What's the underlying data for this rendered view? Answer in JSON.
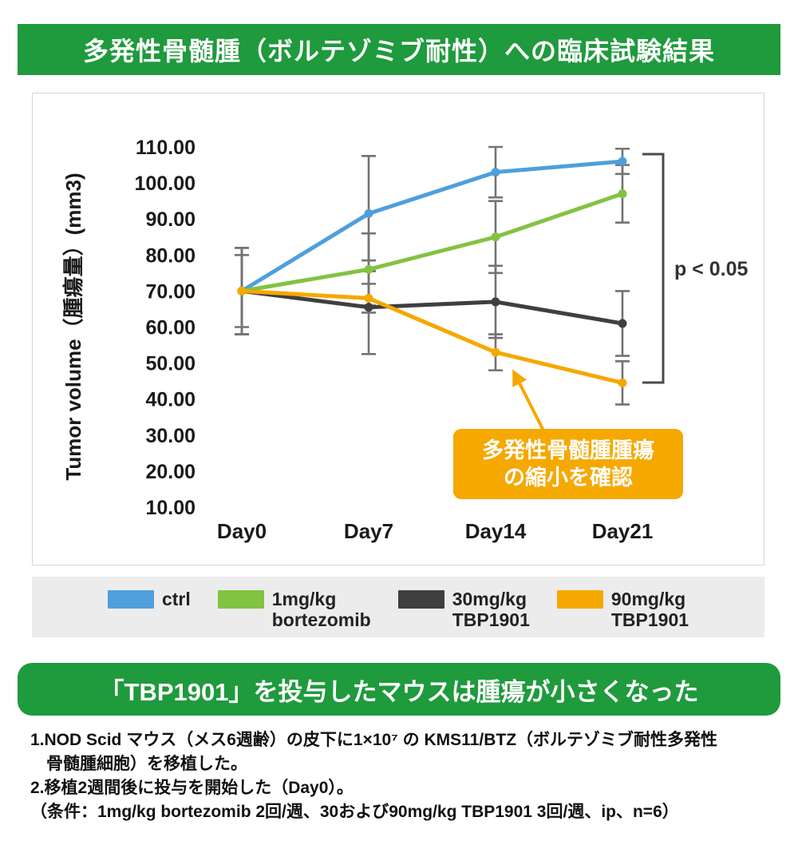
{
  "header": {
    "title": "多発性骨髄腫（ボルテゾミブ耐性）への臨床試験結果"
  },
  "colors": {
    "banner_green": "#1f9a3d",
    "legend_bg": "#ececec",
    "ctrl_blue": "#4f9fdc",
    "bortezomib_green": "#82c341",
    "tbp30_dark": "#3f3f3f",
    "tbp90_orange": "#f5a800"
  },
  "chart_data": {
    "type": "line",
    "title": "",
    "x_categories": [
      "Day0",
      "Day7",
      "Day14",
      "Day21"
    ],
    "xlabel": "",
    "ylabel": "Tumor volume（腫瘍量）(mm3)",
    "ylim": [
      10,
      110
    ],
    "ytick_step": 10,
    "ytick_format_decimals": 2,
    "grid": false,
    "legend_position": "bottom",
    "error_bar_color": "#737373",
    "series": [
      {
        "name": "ctrl",
        "color": "#4f9fdc",
        "values": [
          70,
          91.5,
          103,
          106
        ],
        "errors": [
          12,
          16,
          7,
          3.5
        ]
      },
      {
        "name": "1mg/kg bortezomib",
        "color": "#82c341",
        "values": [
          70,
          76,
          85,
          97
        ],
        "errors": [
          10,
          10,
          10,
          8
        ]
      },
      {
        "name": "30mg/kg TBP1901",
        "color": "#3f3f3f",
        "values": [
          70,
          65.5,
          67,
          61
        ],
        "errors": [
          12,
          13,
          10,
          9
        ]
      },
      {
        "name": "90mg/kg TBP1901",
        "color": "#f5a800",
        "values": [
          70,
          68,
          53,
          44.5
        ],
        "errors": [
          12,
          4,
          5,
          6
        ]
      }
    ],
    "significance": {
      "label": "p < 0.05",
      "compares": [
        "ctrl",
        "90mg/kg TBP1901"
      ],
      "at": "Day21"
    },
    "annotation": {
      "lines": [
        "多発性骨髄腫腫瘍",
        "の縮小を確認"
      ],
      "box_color": "#f5a800",
      "text_color": "#ffffff",
      "points_to": {
        "series": "90mg/kg TBP1901",
        "x": "Day14"
      }
    }
  },
  "legend": {
    "items": [
      {
        "color": "#4f9fdc",
        "lines": [
          "ctrl"
        ]
      },
      {
        "color": "#82c341",
        "lines": [
          "1mg/kg",
          "bortezomib"
        ]
      },
      {
        "color": "#3f3f3f",
        "lines": [
          "30mg/kg",
          "TBP1901"
        ]
      },
      {
        "color": "#f5a800",
        "lines": [
          "90mg/kg",
          "TBP1901"
        ]
      }
    ]
  },
  "conclusion": {
    "text": "「TBP1901」を投与したマウスは腫瘍が小さくなった"
  },
  "footnotes": {
    "lines": [
      "1.NOD Scid マウス（メス6週齢）の皮下に1×10⁷ の KMS11/BTZ（ボルテゾミブ耐性多発性",
      "骨髄腫細胞）を移植した。",
      "2.移植2週間後に投与を開始した（Day0）。",
      "（条件：1mg/kg bortezomib 2回/週、30および90mg/kg TBP1901 3回/週、ip、n=6）"
    ]
  }
}
